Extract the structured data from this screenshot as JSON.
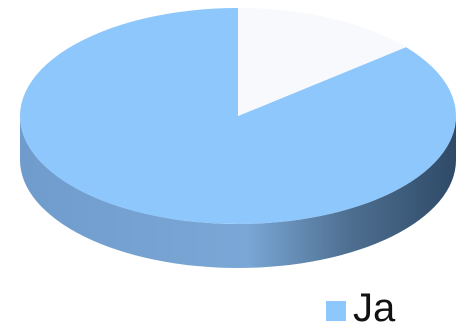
{
  "chart_data": {
    "type": "pie",
    "title": "",
    "slices": [
      {
        "label": "Ja",
        "value": 86
      },
      {
        "label": "",
        "value": 14
      }
    ],
    "colors": [
      "#8ec7fb",
      "#f7f9fc"
    ],
    "side_colors": {
      "left": "#6f9ccc",
      "right": "#2e4a67"
    },
    "style": "3d",
    "legend": {
      "position": "bottom-right",
      "entries": [
        {
          "label": "Ja",
          "color": "#8ec7fb"
        }
      ]
    }
  }
}
